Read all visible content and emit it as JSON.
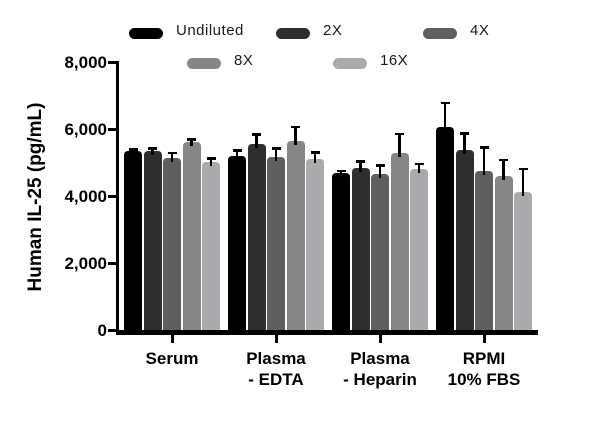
{
  "chart_data": {
    "type": "bar",
    "title": "",
    "ylabel": "Human IL-25 (pg/mL)",
    "xlabel": "",
    "ylim": [
      0,
      8000
    ],
    "grid": false,
    "legend_position": "top",
    "yticks": [
      {
        "value": 0,
        "label": "0"
      },
      {
        "value": 2000,
        "label": "2,000"
      },
      {
        "value": 4000,
        "label": "4,000"
      },
      {
        "value": 6000,
        "label": "6,000"
      },
      {
        "value": 8000,
        "label": "8,000"
      }
    ],
    "categories": [
      "Serum",
      "Plasma - EDTA",
      "Plasma - Heparin",
      "RPMI 10% FBS"
    ],
    "category_lines": [
      [
        "Serum"
      ],
      [
        "Plasma",
        "- EDTA"
      ],
      [
        "Plasma",
        "- Heparin"
      ],
      [
        "RPMI",
        "10% FBS"
      ]
    ],
    "series": [
      {
        "name": "Undiluted",
        "color": "#000000",
        "values": [
          5340,
          5190,
          4690,
          6060
        ],
        "errors": [
          50,
          180,
          60,
          720
        ]
      },
      {
        "name": "2X",
        "color": "#2e2e2e",
        "values": [
          5330,
          5550,
          4830,
          5360
        ],
        "errors": [
          90,
          300,
          210,
          520
        ]
      },
      {
        "name": "4X",
        "color": "#5f5f5f",
        "values": [
          5120,
          5150,
          4660,
          4760
        ],
        "errors": [
          170,
          270,
          260,
          700
        ]
      },
      {
        "name": "8X",
        "color": "#868686",
        "values": [
          5610,
          5650,
          5280,
          4610
        ],
        "errors": [
          80,
          420,
          580,
          470
        ]
      },
      {
        "name": "16X",
        "color": "#aaaaac",
        "values": [
          5010,
          5100,
          4820,
          4120
        ],
        "errors": [
          120,
          200,
          150,
          700
        ]
      }
    ],
    "error_bar_color": "#000000",
    "axis_color": "#000000"
  }
}
